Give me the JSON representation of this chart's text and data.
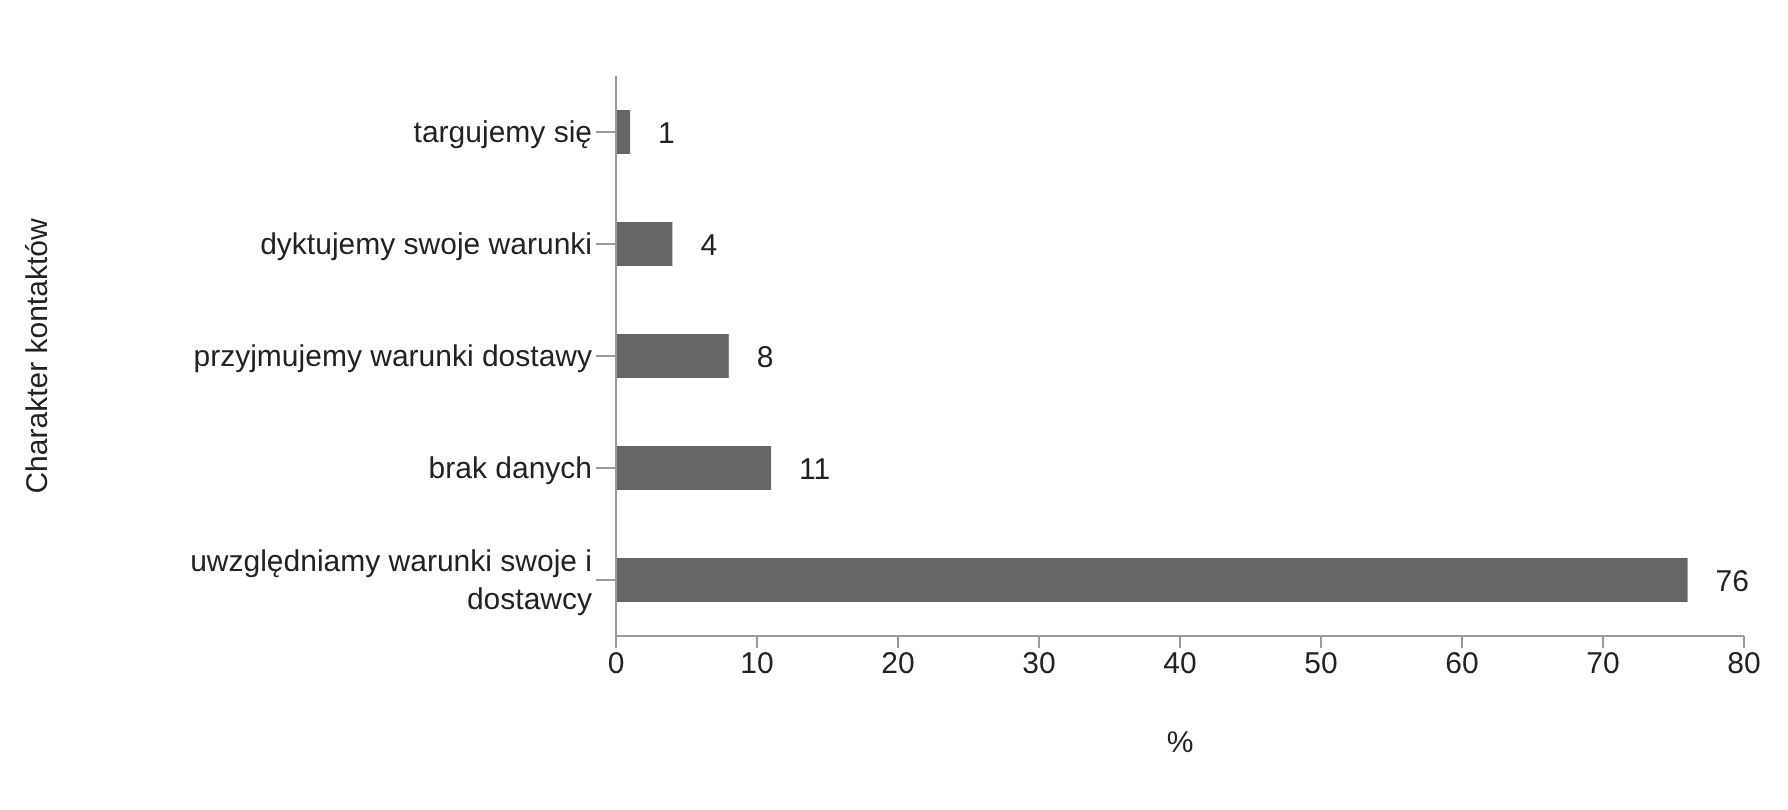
{
  "chart_data": {
    "type": "bar",
    "orientation": "horizontal",
    "xlabel": "%",
    "ylabel": "Charakter kontaktów",
    "categories": [
      "targujemy się",
      "dyktujemy swoje warunki",
      "przyjmujemy warunki dostawy",
      "brak danych",
      "uwzględniamy warunki swoje i dostawcy"
    ],
    "values": [
      1,
      4,
      8,
      11,
      76
    ],
    "color": "#666666",
    "xlim": [
      0,
      80
    ],
    "xticks": [
      0,
      10,
      20,
      30,
      40,
      50,
      60,
      70,
      80
    ],
    "grid": false,
    "legend": false,
    "data_labels": true
  }
}
